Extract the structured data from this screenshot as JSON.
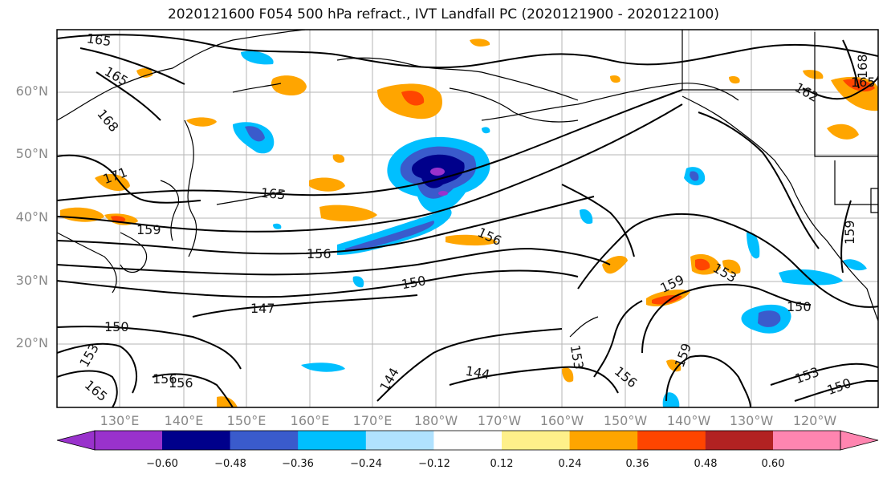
{
  "title": "2020121600 F054 500 hPa refract., IVT Landfall PC (2020121900 - 2020122100)",
  "lat_labels": [
    "60°N",
    "50°N",
    "40°N",
    "30°N",
    "20°N"
  ],
  "lon_labels": [
    "130°E",
    "140°E",
    "150°E",
    "160°E",
    "170°E",
    "180°W",
    "170°W",
    "160°W",
    "150°W",
    "140°W",
    "130°W",
    "120°W"
  ],
  "colorbar": {
    "ticks": [
      "−0.60",
      "−0.48",
      "−0.36",
      "−0.24",
      "−0.12",
      "0.12",
      "0.24",
      "0.36",
      "0.48",
      "0.60"
    ],
    "colors": [
      "#9932cc",
      "#00008b",
      "#3a5bcc",
      "#00bfff",
      "#b0e2ff",
      "#ffffff",
      "#fff08a",
      "#ffa500",
      "#ff4500",
      "#b22222",
      "#ff85b0"
    ]
  },
  "contour_labels": [
    "165",
    "165",
    "168",
    "171",
    "165",
    "159",
    "156",
    "156",
    "150",
    "147",
    "150",
    "153",
    "159",
    "165",
    "156",
    "144",
    "144",
    "153",
    "156",
    "159",
    "156",
    "153",
    "150",
    "153",
    "150",
    "159",
    "162",
    "165",
    "168"
  ]
}
